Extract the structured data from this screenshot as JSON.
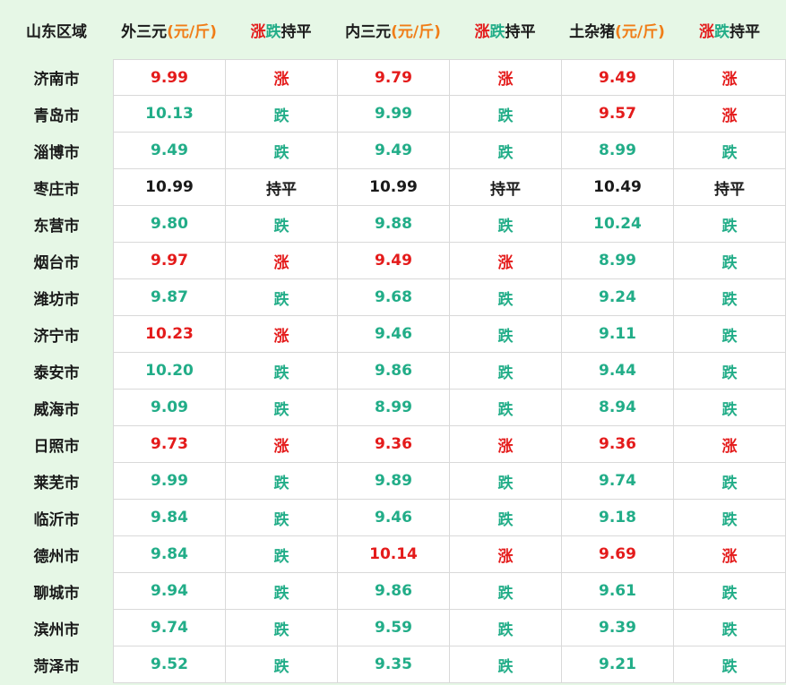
{
  "header": {
    "region": "山东区域",
    "col1_name": "外三元",
    "col2_name": "内三元",
    "col3_name": "土杂猪",
    "unit": "(元/斤)",
    "trend_up": "涨",
    "trend_down": "跌",
    "trend_flat": "持平"
  },
  "colors": {
    "up": "#e41b1b",
    "down": "#22ad88",
    "flat": "#1a1a1a",
    "unit": "#f07d17",
    "region_bg": "#e6f7e6"
  },
  "rows": [
    {
      "city": "济南市",
      "p1": "9.99",
      "t1": "涨",
      "p2": "9.79",
      "t2": "涨",
      "p3": "9.49",
      "t3": "涨"
    },
    {
      "city": "青岛市",
      "p1": "10.13",
      "t1": "跌",
      "p2": "9.99",
      "t2": "跌",
      "p3": "9.57",
      "t3": "涨"
    },
    {
      "city": "淄博市",
      "p1": "9.49",
      "t1": "跌",
      "p2": "9.49",
      "t2": "跌",
      "p3": "8.99",
      "t3": "跌"
    },
    {
      "city": "枣庄市",
      "p1": "10.99",
      "t1": "持平",
      "p2": "10.99",
      "t2": "持平",
      "p3": "10.49",
      "t3": "持平"
    },
    {
      "city": "东营市",
      "p1": "9.80",
      "t1": "跌",
      "p2": "9.88",
      "t2": "跌",
      "p3": "10.24",
      "t3": "跌"
    },
    {
      "city": "烟台市",
      "p1": "9.97",
      "t1": "涨",
      "p2": "9.49",
      "t2": "涨",
      "p3": "8.99",
      "t3": "跌"
    },
    {
      "city": "潍坊市",
      "p1": "9.87",
      "t1": "跌",
      "p2": "9.68",
      "t2": "跌",
      "p3": "9.24",
      "t3": "跌"
    },
    {
      "city": "济宁市",
      "p1": "10.23",
      "t1": "涨",
      "p2": "9.46",
      "t2": "跌",
      "p3": "9.11",
      "t3": "跌"
    },
    {
      "city": "泰安市",
      "p1": "10.20",
      "t1": "跌",
      "p2": "9.86",
      "t2": "跌",
      "p3": "9.44",
      "t3": "跌"
    },
    {
      "city": "威海市",
      "p1": "9.09",
      "t1": "跌",
      "p2": "8.99",
      "t2": "跌",
      "p3": "8.94",
      "t3": "跌"
    },
    {
      "city": "日照市",
      "p1": "9.73",
      "t1": "涨",
      "p2": "9.36",
      "t2": "涨",
      "p3": "9.36",
      "t3": "涨"
    },
    {
      "city": "莱芜市",
      "p1": "9.99",
      "t1": "跌",
      "p2": "9.89",
      "t2": "跌",
      "p3": "9.74",
      "t3": "跌"
    },
    {
      "city": "临沂市",
      "p1": "9.84",
      "t1": "跌",
      "p2": "9.46",
      "t2": "跌",
      "p3": "9.18",
      "t3": "跌"
    },
    {
      "city": "德州市",
      "p1": "9.84",
      "t1": "跌",
      "p2": "10.14",
      "t2": "涨",
      "p3": "9.69",
      "t3": "涨"
    },
    {
      "city": "聊城市",
      "p1": "9.94",
      "t1": "跌",
      "p2": "9.86",
      "t2": "跌",
      "p3": "9.61",
      "t3": "跌"
    },
    {
      "city": "滨州市",
      "p1": "9.74",
      "t1": "跌",
      "p2": "9.59",
      "t2": "跌",
      "p3": "9.39",
      "t3": "跌"
    },
    {
      "city": "菏泽市",
      "p1": "9.52",
      "t1": "跌",
      "p2": "9.35",
      "t2": "跌",
      "p3": "9.21",
      "t3": "跌"
    }
  ]
}
